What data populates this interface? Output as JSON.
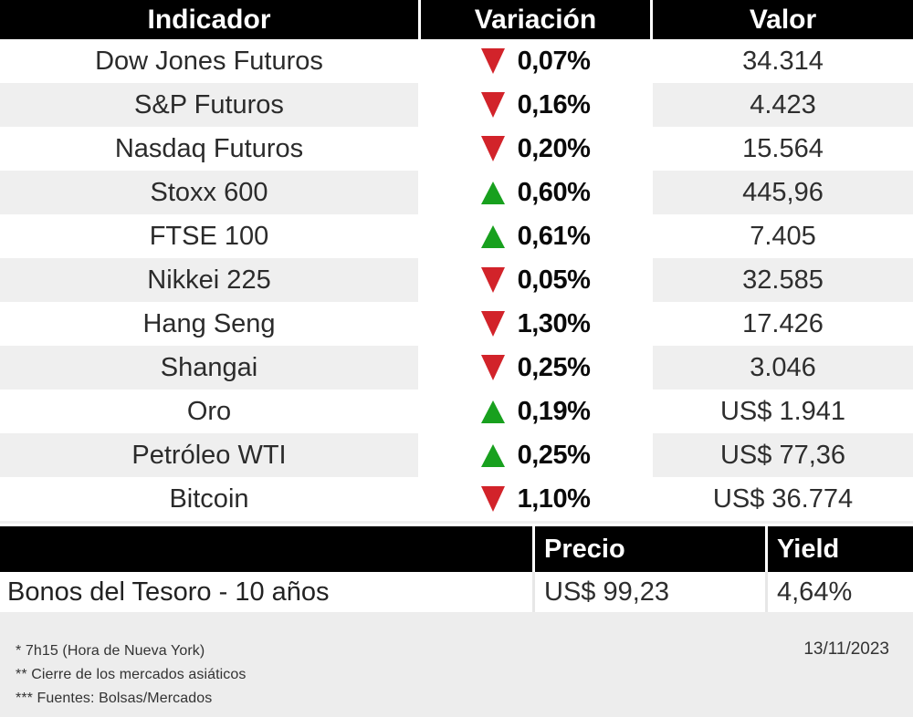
{
  "table1": {
    "headers": [
      "Indicador",
      "Variación",
      "Valor"
    ],
    "rows": [
      {
        "indicator": "Dow Jones Futuros",
        "direction": "down",
        "variation": "0,07%",
        "value": "34.314"
      },
      {
        "indicator": "S&P Futuros",
        "direction": "down",
        "variation": "0,16%",
        "value": "4.423"
      },
      {
        "indicator": "Nasdaq Futuros",
        "direction": "down",
        "variation": "0,20%",
        "value": "15.564"
      },
      {
        "indicator": "Stoxx 600",
        "direction": "up",
        "variation": "0,60%",
        "value": "445,96"
      },
      {
        "indicator": "FTSE 100",
        "direction": "up",
        "variation": "0,61%",
        "value": "7.405"
      },
      {
        "indicator": "Nikkei 225",
        "direction": "down",
        "variation": "0,05%",
        "value": "32.585"
      },
      {
        "indicator": "Hang Seng",
        "direction": "down",
        "variation": "1,30%",
        "value": "17.426"
      },
      {
        "indicator": "Shangai",
        "direction": "down",
        "variation": "0,25%",
        "value": "3.046"
      },
      {
        "indicator": "Oro",
        "direction": "up",
        "variation": "0,19%",
        "value": "US$ 1.941"
      },
      {
        "indicator": "Petróleo WTI",
        "direction": "up",
        "variation": "0,25%",
        "value": "US$ 77,36"
      },
      {
        "indicator": "Bitcoin",
        "direction": "down",
        "variation": "1,10%",
        "value": "US$ 36.774"
      }
    ]
  },
  "table2": {
    "headers": [
      "",
      "Precio",
      "Yield"
    ],
    "rows": [
      {
        "name": "Bonos del Tesoro - 10 años",
        "price": "US$ 99,23",
        "yield": "4,64%"
      }
    ]
  },
  "footer": {
    "notes": [
      "* 7h15 (Hora de Nueva York)",
      "** Cierre de los mercados asiáticos",
      "*** Fuentes:  Bolsas/Mercados"
    ],
    "date": "13/11/2023"
  },
  "colors": {
    "down": "#d2232a",
    "up": "#18a01e",
    "row-alt": "#efefef",
    "header-bg": "#000000",
    "footer-bg": "#ededed"
  },
  "chart_data": {
    "type": "table",
    "title": "",
    "columns": [
      "Indicador",
      "Variación",
      "Valor"
    ],
    "rows": [
      [
        "Dow Jones Futuros",
        "-0,07%",
        "34.314"
      ],
      [
        "S&P Futuros",
        "-0,16%",
        "4.423"
      ],
      [
        "Nasdaq Futuros",
        "-0,20%",
        "15.564"
      ],
      [
        "Stoxx 600",
        "+0,60%",
        "445,96"
      ],
      [
        "FTSE 100",
        "+0,61%",
        "7.405"
      ],
      [
        "Nikkei 225",
        "-0,05%",
        "32.585"
      ],
      [
        "Hang Seng",
        "-1,30%",
        "17.426"
      ],
      [
        "Shangai",
        "-0,25%",
        "3.046"
      ],
      [
        "Oro",
        "+0,19%",
        "US$ 1.941"
      ],
      [
        "Petróleo WTI",
        "+0,25%",
        "US$ 77,36"
      ],
      [
        "Bitcoin",
        "-1,10%",
        "US$ 36.774"
      ],
      [
        "Bonos del Tesoro - 10 años",
        "Precio: US$ 99,23",
        "Yield: 4,64%"
      ]
    ]
  }
}
